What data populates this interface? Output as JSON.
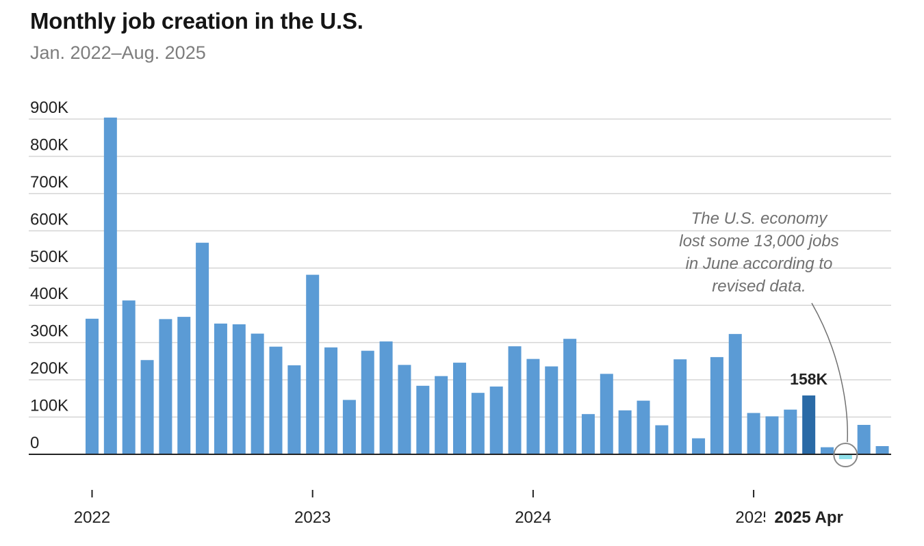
{
  "chart_data": {
    "type": "bar",
    "title": "Monthly job creation in the U.S.",
    "subtitle": "Jan. 2022–Aug. 2025",
    "ylim": [
      0,
      900000
    ],
    "yticks": [
      {
        "value": 0,
        "label": "0"
      },
      {
        "value": 100000,
        "label": "100K"
      },
      {
        "value": 200000,
        "label": "200K"
      },
      {
        "value": 300000,
        "label": "300K"
      },
      {
        "value": 400000,
        "label": "400K"
      },
      {
        "value": 500000,
        "label": "500K"
      },
      {
        "value": 600000,
        "label": "600K"
      },
      {
        "value": 700000,
        "label": "700K"
      },
      {
        "value": 800000,
        "label": "800K"
      },
      {
        "value": 900000,
        "label": "900K"
      }
    ],
    "xtick_labels": [
      {
        "index": 0,
        "label": "2022",
        "bold": false
      },
      {
        "index": 12,
        "label": "2023",
        "bold": false
      },
      {
        "index": 24,
        "label": "2024",
        "bold": false
      },
      {
        "index": 36,
        "label": "2025",
        "bold": false,
        "clipped": true
      },
      {
        "index": 39,
        "label": "2025 Apr",
        "bold": true
      }
    ],
    "grid": true,
    "categories": [
      "2022-01",
      "2022-02",
      "2022-03",
      "2022-04",
      "2022-05",
      "2022-06",
      "2022-07",
      "2022-08",
      "2022-09",
      "2022-10",
      "2022-11",
      "2022-12",
      "2023-01",
      "2023-02",
      "2023-03",
      "2023-04",
      "2023-05",
      "2023-06",
      "2023-07",
      "2023-08",
      "2023-09",
      "2023-10",
      "2023-11",
      "2023-12",
      "2024-01",
      "2024-02",
      "2024-03",
      "2024-04",
      "2024-05",
      "2024-06",
      "2024-07",
      "2024-08",
      "2024-09",
      "2024-10",
      "2024-11",
      "2024-12",
      "2025-01",
      "2025-02",
      "2025-03",
      "2025-04",
      "2025-05",
      "2025-06",
      "2025-07",
      "2025-08"
    ],
    "values": [
      364000,
      904000,
      413000,
      253000,
      363000,
      369000,
      568000,
      351000,
      349000,
      324000,
      289000,
      239000,
      482000,
      287000,
      146000,
      278000,
      303000,
      240000,
      184000,
      210000,
      246000,
      165000,
      182000,
      290000,
      256000,
      236000,
      310000,
      108000,
      216000,
      118000,
      144000,
      78000,
      255000,
      43000,
      261000,
      323000,
      111000,
      102000,
      120000,
      158000,
      19000,
      -13000,
      79000,
      22000
    ],
    "highlight": {
      "index": 39,
      "label": "158K",
      "color": "#2a6aa6"
    },
    "negative": {
      "index": 41,
      "color": "#8fe0ea"
    },
    "bar_color": "#5b9bd5",
    "annotation": {
      "lines": [
        "The U.S. economy",
        "lost some 13,000 jobs",
        "in June according to",
        "revised data."
      ],
      "target_index": 41
    }
  }
}
